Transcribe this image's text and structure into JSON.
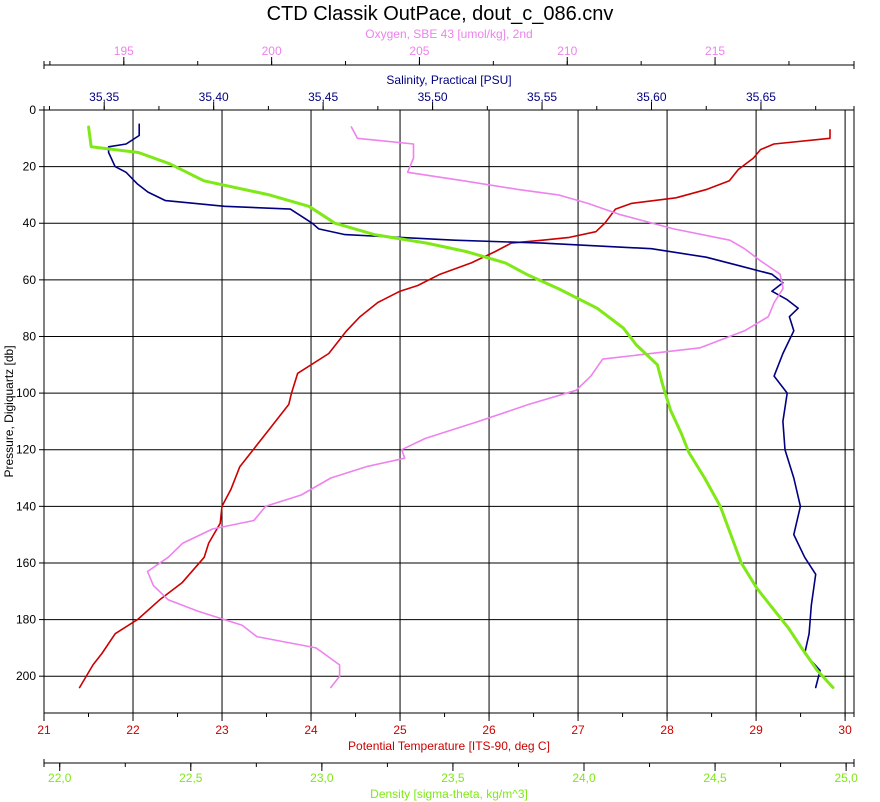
{
  "chart_data": {
    "type": "line",
    "title": "CTD Classik OutPace, dout_c_086.cnv",
    "ylabel": "Pressure, Digiquartz [db]",
    "ylim": [
      0,
      213
    ],
    "yticks": [
      0,
      20,
      40,
      60,
      80,
      100,
      120,
      140,
      160,
      180,
      200
    ],
    "grid": true,
    "axes": {
      "oxygen": {
        "label": "Oxygen, SBE 43 [umol/kg], 2nd",
        "range": [
          192.3,
          219.7
        ],
        "ticks": [
          "195",
          "200",
          "205",
          "210",
          "215"
        ],
        "color": "#ee82ee",
        "position": "top"
      },
      "salinity": {
        "label": "Salinity, Practical [PSU]",
        "range": [
          35.3225,
          35.6925
        ],
        "ticks": [
          "35,35",
          "35,40",
          "35,45",
          "35,50",
          "35,55",
          "35,60",
          "35,65"
        ],
        "color": "#000080",
        "position": "top"
      },
      "temperature": {
        "label": "Potential Temperature [ITS-90, deg C]",
        "range": [
          21,
          30.1
        ],
        "ticks": [
          "21",
          "22",
          "23",
          "24",
          "25",
          "26",
          "27",
          "28",
          "29",
          "30"
        ],
        "color": "#cc0000",
        "position": "bottom"
      },
      "density": {
        "label": "Density [sigma-theta, kg/m^3]",
        "range": [
          21.94,
          25.03
        ],
        "ticks": [
          "22,0",
          "22,5",
          "23,0",
          "23,5",
          "24,0",
          "24,5",
          "25,0"
        ],
        "color": "#7fe817",
        "position": "bottom"
      }
    },
    "series": [
      {
        "key": "temperature",
        "color": "#cc0000",
        "points": [
          [
            29.83,
            7
          ],
          [
            29.83,
            10
          ],
          [
            29.2,
            12
          ],
          [
            29.05,
            14
          ],
          [
            28.97,
            17
          ],
          [
            28.8,
            21
          ],
          [
            28.7,
            25
          ],
          [
            28.45,
            28
          ],
          [
            28.1,
            31
          ],
          [
            27.6,
            33
          ],
          [
            27.42,
            35
          ],
          [
            27.3,
            40
          ],
          [
            27.2,
            43
          ],
          [
            26.9,
            45
          ],
          [
            26.6,
            46
          ],
          [
            26.25,
            47
          ],
          [
            26.07,
            50
          ],
          [
            25.8,
            54
          ],
          [
            25.45,
            58
          ],
          [
            25.2,
            62
          ],
          [
            25.0,
            64
          ],
          [
            24.75,
            68
          ],
          [
            24.55,
            73
          ],
          [
            24.4,
            78
          ],
          [
            24.2,
            86
          ],
          [
            23.85,
            93
          ],
          [
            23.78,
            100
          ],
          [
            23.75,
            104
          ],
          [
            23.55,
            112
          ],
          [
            23.35,
            120
          ],
          [
            23.2,
            126
          ],
          [
            23.1,
            134
          ],
          [
            23.0,
            140
          ],
          [
            22.98,
            146
          ],
          [
            22.85,
            153
          ],
          [
            22.8,
            158
          ],
          [
            22.55,
            167
          ],
          [
            22.3,
            173
          ],
          [
            22.05,
            180
          ],
          [
            21.8,
            185
          ],
          [
            21.65,
            192
          ],
          [
            21.55,
            196
          ],
          [
            21.4,
            204
          ]
        ]
      },
      {
        "key": "salinity",
        "color": "#000080",
        "points": [
          [
            35.366,
            5
          ],
          [
            35.366,
            9
          ],
          [
            35.36,
            12
          ],
          [
            35.352,
            13
          ],
          [
            35.352,
            15
          ],
          [
            35.355,
            20
          ],
          [
            35.36,
            22
          ],
          [
            35.365,
            26
          ],
          [
            35.37,
            29
          ],
          [
            35.378,
            32
          ],
          [
            35.405,
            34
          ],
          [
            35.435,
            35
          ],
          [
            35.445,
            40
          ],
          [
            35.448,
            42
          ],
          [
            35.46,
            44
          ],
          [
            35.51,
            46
          ],
          [
            35.55,
            47
          ],
          [
            35.6,
            49
          ],
          [
            35.625,
            52
          ],
          [
            35.64,
            55
          ],
          [
            35.655,
            58
          ],
          [
            35.66,
            61
          ],
          [
            35.655,
            64
          ],
          [
            35.662,
            67
          ],
          [
            35.667,
            70
          ],
          [
            35.663,
            73
          ],
          [
            35.665,
            78
          ],
          [
            35.66,
            86
          ],
          [
            35.656,
            94
          ],
          [
            35.662,
            100
          ],
          [
            35.66,
            110
          ],
          [
            35.661,
            120
          ],
          [
            35.665,
            130
          ],
          [
            35.668,
            140
          ],
          [
            35.665,
            150
          ],
          [
            35.67,
            158
          ],
          [
            35.675,
            164
          ],
          [
            35.673,
            175
          ],
          [
            35.672,
            185
          ],
          [
            35.67,
            192
          ],
          [
            35.677,
            198
          ],
          [
            35.675,
            204
          ]
        ]
      },
      {
        "key": "oxygen",
        "color": "#ee82ee",
        "points": [
          [
            202.7,
            6
          ],
          [
            202.9,
            10
          ],
          [
            204.8,
            12
          ],
          [
            204.8,
            17
          ],
          [
            204.6,
            22
          ],
          [
            206.5,
            25
          ],
          [
            208.3,
            28
          ],
          [
            209.7,
            30
          ],
          [
            210.7,
            33
          ],
          [
            211.8,
            37
          ],
          [
            213.6,
            42
          ],
          [
            215.5,
            46
          ],
          [
            216.0,
            49
          ],
          [
            216.5,
            53
          ],
          [
            217.2,
            58
          ],
          [
            217.3,
            63
          ],
          [
            217.0,
            68
          ],
          [
            216.8,
            73
          ],
          [
            216.0,
            78
          ],
          [
            214.5,
            84
          ],
          [
            211.2,
            88
          ],
          [
            210.8,
            94
          ],
          [
            210.3,
            99
          ],
          [
            208.7,
            104
          ],
          [
            207.0,
            110
          ],
          [
            205.2,
            116
          ],
          [
            204.4,
            120
          ],
          [
            204.5,
            123
          ],
          [
            203.2,
            126
          ],
          [
            202.0,
            130
          ],
          [
            201.0,
            136
          ],
          [
            199.8,
            140
          ],
          [
            199.4,
            145
          ],
          [
            198.0,
            148
          ],
          [
            197.0,
            153
          ],
          [
            196.5,
            158
          ],
          [
            195.8,
            163
          ],
          [
            196.0,
            168
          ],
          [
            196.5,
            173
          ],
          [
            197.5,
            177
          ],
          [
            199.0,
            182
          ],
          [
            199.5,
            186
          ],
          [
            201.5,
            190
          ],
          [
            202.3,
            196
          ],
          [
            202.3,
            200
          ],
          [
            202.0,
            204
          ]
        ]
      },
      {
        "key": "density",
        "color": "#7fe817",
        "points": [
          [
            22.11,
            6
          ],
          [
            22.12,
            13
          ],
          [
            22.3,
            15
          ],
          [
            22.42,
            19
          ],
          [
            22.55,
            25
          ],
          [
            22.8,
            30
          ],
          [
            22.95,
            34
          ],
          [
            23.0,
            37
          ],
          [
            23.05,
            40
          ],
          [
            23.2,
            44
          ],
          [
            23.4,
            47
          ],
          [
            23.55,
            50
          ],
          [
            23.7,
            54
          ],
          [
            23.78,
            58
          ],
          [
            23.9,
            63
          ],
          [
            24.05,
            70
          ],
          [
            24.15,
            77
          ],
          [
            24.2,
            83
          ],
          [
            24.28,
            90
          ],
          [
            24.3,
            97
          ],
          [
            24.33,
            106
          ],
          [
            24.37,
            114
          ],
          [
            24.4,
            121
          ],
          [
            24.46,
            130
          ],
          [
            24.52,
            140
          ],
          [
            24.56,
            150
          ],
          [
            24.6,
            160
          ],
          [
            24.66,
            169
          ],
          [
            24.72,
            176
          ],
          [
            24.78,
            183
          ],
          [
            24.83,
            190
          ],
          [
            24.89,
            198
          ],
          [
            24.95,
            204
          ]
        ]
      }
    ]
  }
}
